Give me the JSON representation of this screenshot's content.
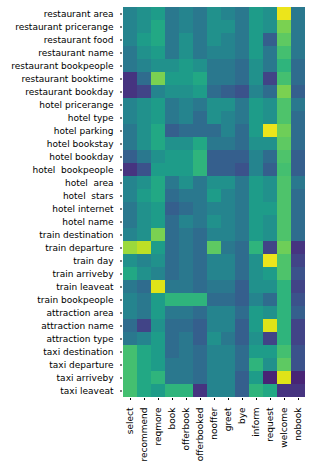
{
  "chart_data": {
    "type": "heatmap",
    "rows": [
      "restaurant area",
      "restaurant pricerange",
      "restaurant food",
      "restaurant name",
      "restaurant bookpeople",
      "restaurant booktime",
      "restaurant bookday",
      "hotel pricerange",
      "hotel type",
      "hotel parking",
      "hotel bookstay",
      "hotel bookday",
      "hotel  bookpeople",
      "hotel  area",
      "hotel  stars",
      "hotel internet",
      "hotel name",
      "train destination",
      "train departure",
      "train day",
      "train arriveby",
      "train leaveat",
      "train bookpeople",
      "attraction area",
      "attraction name",
      "attraction type",
      "taxi destination",
      "taxi departure",
      "taxi arriveby",
      "taxi leaveat"
    ],
    "columns": [
      "select",
      "recommend",
      "reqmore",
      "book",
      "offerbook",
      "offerbooked",
      "nooffer",
      "greet",
      "bye",
      "inform",
      "request",
      "welcome",
      "nobook"
    ],
    "cells": [
      [
        0.45,
        0.5,
        0.55,
        0.4,
        0.45,
        0.4,
        0.5,
        0.45,
        0.4,
        0.55,
        0.5,
        0.97,
        0.4
      ],
      [
        0.45,
        0.5,
        0.6,
        0.4,
        0.45,
        0.4,
        0.5,
        0.5,
        0.4,
        0.55,
        0.5,
        0.8,
        0.4
      ],
      [
        0.45,
        0.55,
        0.6,
        0.4,
        0.5,
        0.4,
        0.5,
        0.45,
        0.4,
        0.55,
        0.3,
        0.75,
        0.4
      ],
      [
        0.4,
        0.5,
        0.55,
        0.4,
        0.5,
        0.4,
        0.45,
        0.45,
        0.4,
        0.55,
        0.4,
        0.7,
        0.4
      ],
      [
        0.4,
        0.45,
        0.5,
        0.5,
        0.55,
        0.5,
        0.4,
        0.4,
        0.35,
        0.5,
        0.4,
        0.65,
        0.35
      ],
      [
        0.15,
        0.35,
        0.8,
        0.55,
        0.55,
        0.6,
        0.4,
        0.4,
        0.35,
        0.5,
        0.2,
        0.7,
        0.35
      ],
      [
        0.15,
        0.2,
        0.45,
        0.5,
        0.5,
        0.55,
        0.35,
        0.3,
        0.25,
        0.45,
        0.35,
        0.8,
        0.3
      ],
      [
        0.45,
        0.5,
        0.55,
        0.4,
        0.45,
        0.4,
        0.5,
        0.5,
        0.4,
        0.55,
        0.5,
        0.72,
        0.4
      ],
      [
        0.45,
        0.5,
        0.55,
        0.4,
        0.45,
        0.35,
        0.5,
        0.45,
        0.4,
        0.55,
        0.5,
        0.72,
        0.35
      ],
      [
        0.4,
        0.5,
        0.6,
        0.3,
        0.35,
        0.35,
        0.35,
        0.45,
        0.35,
        0.55,
        0.97,
        0.78,
        0.35
      ],
      [
        0.4,
        0.5,
        0.6,
        0.5,
        0.5,
        0.6,
        0.4,
        0.4,
        0.35,
        0.5,
        0.5,
        0.75,
        0.35
      ],
      [
        0.3,
        0.4,
        0.5,
        0.55,
        0.55,
        0.65,
        0.3,
        0.3,
        0.3,
        0.45,
        0.35,
        0.72,
        0.3
      ],
      [
        0.15,
        0.25,
        0.55,
        0.55,
        0.55,
        0.65,
        0.3,
        0.3,
        0.25,
        0.45,
        0.3,
        0.7,
        0.3
      ],
      [
        0.45,
        0.5,
        0.6,
        0.4,
        0.5,
        0.4,
        0.5,
        0.5,
        0.4,
        0.55,
        0.5,
        0.72,
        0.4
      ],
      [
        0.45,
        0.55,
        0.6,
        0.35,
        0.4,
        0.4,
        0.55,
        0.45,
        0.4,
        0.55,
        0.5,
        0.72,
        0.35
      ],
      [
        0.4,
        0.5,
        0.55,
        0.3,
        0.35,
        0.4,
        0.45,
        0.45,
        0.4,
        0.55,
        0.55,
        0.72,
        0.35
      ],
      [
        0.4,
        0.5,
        0.55,
        0.35,
        0.45,
        0.4,
        0.5,
        0.45,
        0.4,
        0.55,
        0.5,
        0.72,
        0.35
      ],
      [
        0.45,
        0.5,
        0.8,
        0.35,
        0.4,
        0.35,
        0.45,
        0.45,
        0.4,
        0.55,
        0.5,
        0.72,
        0.35
      ],
      [
        0.85,
        0.9,
        0.55,
        0.35,
        0.4,
        0.35,
        0.75,
        0.4,
        0.35,
        0.65,
        0.2,
        0.78,
        0.15
      ],
      [
        0.5,
        0.45,
        0.5,
        0.35,
        0.4,
        0.35,
        0.45,
        0.45,
        0.35,
        0.5,
        0.97,
        0.72,
        0.2
      ],
      [
        0.6,
        0.5,
        0.45,
        0.35,
        0.4,
        0.35,
        0.45,
        0.45,
        0.35,
        0.5,
        0.55,
        0.72,
        0.25
      ],
      [
        0.4,
        0.35,
        0.95,
        0.4,
        0.4,
        0.35,
        0.4,
        0.4,
        0.3,
        0.5,
        0.5,
        0.65,
        0.2
      ],
      [
        0.45,
        0.4,
        0.55,
        0.65,
        0.65,
        0.65,
        0.35,
        0.35,
        0.3,
        0.45,
        0.35,
        0.65,
        0.25
      ],
      [
        0.45,
        0.4,
        0.55,
        0.4,
        0.4,
        0.35,
        0.45,
        0.45,
        0.35,
        0.55,
        0.5,
        0.65,
        0.3
      ],
      [
        0.35,
        0.2,
        0.5,
        0.35,
        0.35,
        0.3,
        0.45,
        0.45,
        0.3,
        0.55,
        0.95,
        0.65,
        0.2
      ],
      [
        0.4,
        0.45,
        0.55,
        0.35,
        0.4,
        0.3,
        0.5,
        0.4,
        0.3,
        0.5,
        0.2,
        0.65,
        0.2
      ],
      [
        0.7,
        0.6,
        0.55,
        0.35,
        0.4,
        0.35,
        0.45,
        0.45,
        0.35,
        0.55,
        0.55,
        0.7,
        0.25
      ],
      [
        0.7,
        0.6,
        0.55,
        0.4,
        0.4,
        0.35,
        0.45,
        0.45,
        0.35,
        0.65,
        0.5,
        0.75,
        0.25
      ],
      [
        0.7,
        0.6,
        0.65,
        0.4,
        0.4,
        0.35,
        0.45,
        0.45,
        0.3,
        0.55,
        0.1,
        0.95,
        0.1
      ],
      [
        0.7,
        0.6,
        0.55,
        0.65,
        0.65,
        0.15,
        0.45,
        0.45,
        0.3,
        0.65,
        0.6,
        0.15,
        0.15
      ]
    ],
    "color": "viridis",
    "color_range": [
      0,
      1
    ]
  }
}
